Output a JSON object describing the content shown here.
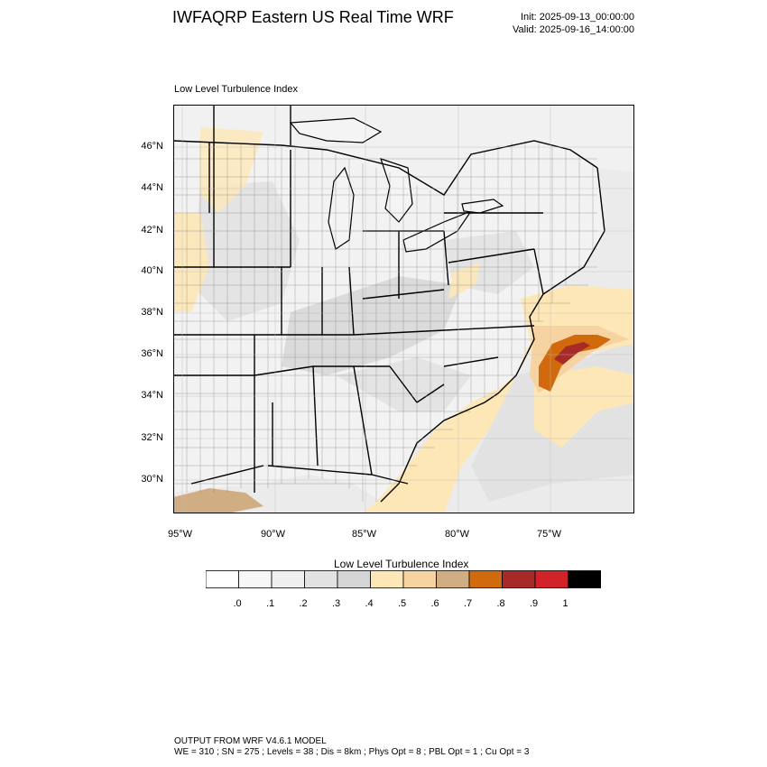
{
  "header": {
    "title": "IWFAQRP Eastern US Real Time WRF",
    "init": "Init: 2025-09-13_00:00:00",
    "valid": "Valid: 2025-09-16_14:00:00"
  },
  "map": {
    "label": "Low Level Turbulence Index",
    "lat_labels": [
      "46°N",
      "44°N",
      "42°N",
      "40°N",
      "38°N",
      "36°N",
      "34°N",
      "32°N",
      "30°N"
    ],
    "lon_labels": [
      "95°W",
      "90°W",
      "85°W",
      "80°W",
      "75°W"
    ],
    "colors": {
      "land_base": "#f2f2f2",
      "ocean_base": "#ebebeb",
      "lake": "#f4f4f4",
      "county_line": "#555555",
      "state_line": "#000000"
    }
  },
  "colorbar": {
    "title": "Low Level Turbulence Index",
    "colors": [
      "#ffffff",
      "#f7f7f7",
      "#efefef",
      "#e2e2e2",
      "#d5d5d5",
      "#fde7b7",
      "#f6d3a0",
      "#d1ad84",
      "#d06a0c",
      "#a82a28",
      "#d2232b",
      "#000000"
    ],
    "labels": [
      ".0",
      ".1",
      ".2",
      ".3",
      ".4",
      ".5",
      ".6",
      ".7",
      ".8",
      ".9",
      "1"
    ]
  },
  "footer": {
    "line1": "OUTPUT FROM WRF V4.6.1 MODEL",
    "line2": "WE = 310 ; SN = 275 ; Levels = 38 ; Dis = 8km ; Phys Opt = 8 ; PBL Opt = 1 ; Cu Opt = 3"
  }
}
